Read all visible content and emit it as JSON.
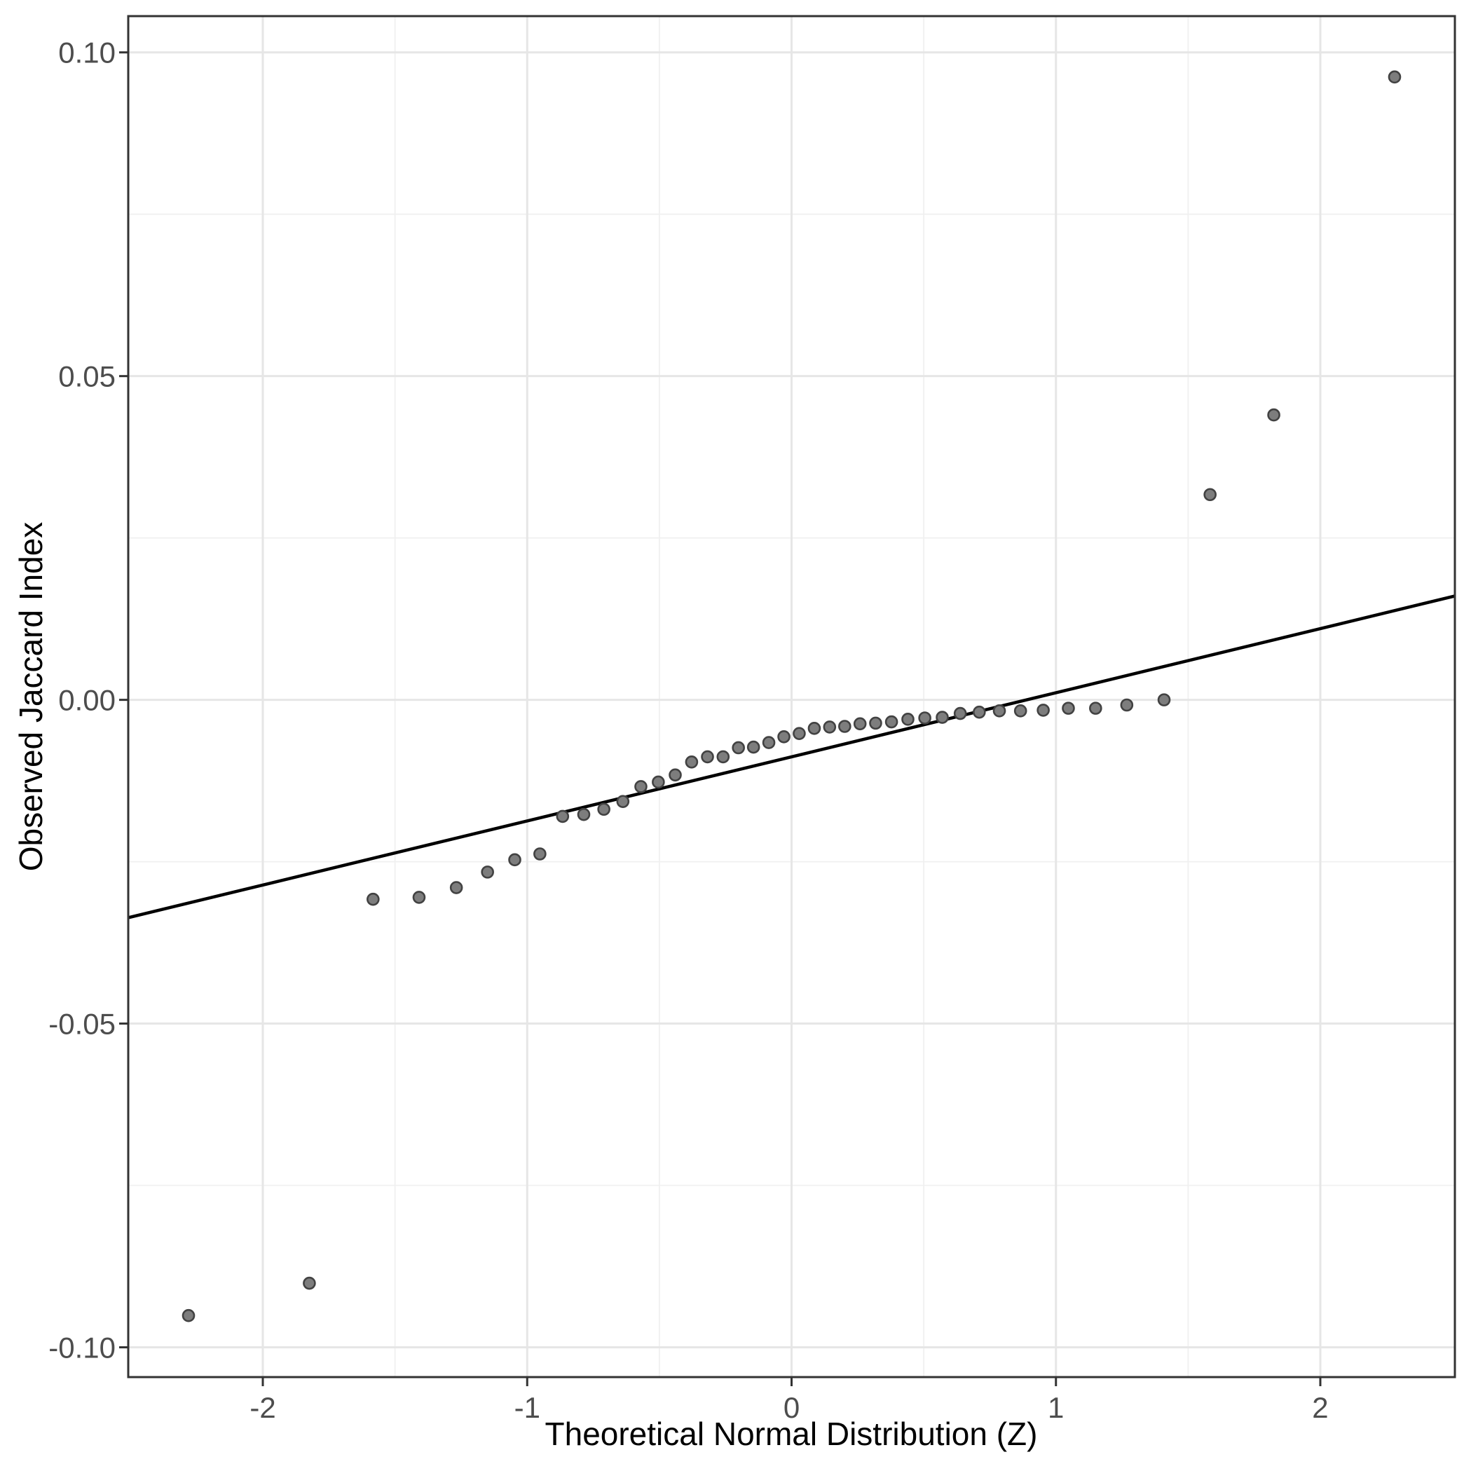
{
  "chart_data": {
    "type": "scatter",
    "subtype": "qq-plot",
    "title": "",
    "xlabel": "Theoretical Normal Distribution (Z)",
    "ylabel": "Observed Jaccard Index",
    "xlim": [
      -2.509,
      2.509
    ],
    "ylim": [
      -0.1046,
      0.1056
    ],
    "grid": "major-and-minor",
    "legend_position": "none",
    "x_ticks": {
      "values": [
        -2,
        -1,
        0,
        1,
        2
      ],
      "labels": [
        "-2",
        "-1",
        "0",
        "1",
        "2"
      ]
    },
    "y_ticks": {
      "values": [
        0.1,
        0.05,
        0.0,
        -0.05,
        -0.1
      ],
      "labels": [
        "0.10",
        "0.05",
        "0.00",
        "-0.05",
        "-0.10"
      ]
    },
    "x_minor_gridlines": [
      -1.5,
      -0.5,
      0.5,
      1.5
    ],
    "y_minor_gridlines": [
      0.075,
      0.025,
      -0.025,
      -0.075
    ],
    "series": [
      {
        "name": "observed-vs-theoretical-quantiles",
        "marker": "circle",
        "n": 44,
        "points": [
          [
            -2.281,
            -0.0951
          ],
          [
            -1.824,
            -0.0901
          ],
          [
            -1.583,
            -0.0308
          ],
          [
            -1.409,
            -0.0305
          ],
          [
            -1.268,
            -0.029
          ],
          [
            -1.15,
            -0.0266
          ],
          [
            -1.047,
            -0.0247
          ],
          [
            -0.952,
            -0.0238
          ],
          [
            -0.866,
            -0.018
          ],
          [
            -0.786,
            -0.0177
          ],
          [
            -0.71,
            -0.0169
          ],
          [
            -0.638,
            -0.0157
          ],
          [
            -0.57,
            -0.0134
          ],
          [
            -0.504,
            -0.0127
          ],
          [
            -0.44,
            -0.0116
          ],
          [
            -0.378,
            -0.0096
          ],
          [
            -0.318,
            -0.0088
          ],
          [
            -0.259,
            -0.0088
          ],
          [
            -0.201,
            -0.0074
          ],
          [
            -0.144,
            -0.0073
          ],
          [
            -0.086,
            -0.0066
          ],
          [
            -0.029,
            -0.0057
          ],
          [
            0.029,
            -0.0052
          ],
          [
            0.086,
            -0.0044
          ],
          [
            0.144,
            -0.0042
          ],
          [
            0.201,
            -0.0041
          ],
          [
            0.259,
            -0.0037
          ],
          [
            0.318,
            -0.0036
          ],
          [
            0.378,
            -0.0034
          ],
          [
            0.44,
            -0.003
          ],
          [
            0.504,
            -0.0028
          ],
          [
            0.57,
            -0.0027
          ],
          [
            0.638,
            -0.0021
          ],
          [
            0.71,
            -0.0019
          ],
          [
            0.786,
            -0.0017
          ],
          [
            0.866,
            -0.0017
          ],
          [
            0.952,
            -0.0016
          ],
          [
            1.047,
            -0.0013
          ],
          [
            1.15,
            -0.0013
          ],
          [
            1.268,
            -0.0008
          ],
          [
            1.409,
            0.0
          ],
          [
            1.583,
            0.0317
          ],
          [
            1.824,
            0.044
          ],
          [
            2.281,
            0.0962
          ]
        ]
      }
    ],
    "reference_line": {
      "name": "qq-line",
      "slope": 0.0099,
      "intercept": -0.0088,
      "x_start": -2.509,
      "x_end": 2.509
    },
    "style": {
      "background": "#ffffff",
      "panel_background": "#ffffff",
      "panel_border": "#333333",
      "grid_major": "#e6e6e6",
      "grid_minor": "#f0f0f0",
      "point_fill": "#7d7d7d",
      "point_stroke": "#424242",
      "reference_line_color": "#000000",
      "tick_color": "#333333",
      "tick_label_color": "#4d4d4d",
      "axis_title_color": "#000000"
    }
  }
}
